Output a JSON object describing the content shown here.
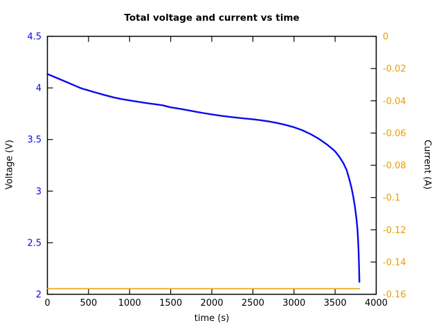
{
  "chart_data": {
    "type": "line",
    "title": "Total voltage and current vs time",
    "xlabel": "time (s)",
    "ylabel_left": "Voltage (V)",
    "ylabel_right": "Current (A)",
    "x_range": [
      0,
      4000
    ],
    "y_left_range": [
      2,
      4.5
    ],
    "y_right_range": [
      -0.16,
      0
    ],
    "x_ticks": [
      0,
      500,
      1000,
      1500,
      2000,
      2500,
      3000,
      3500,
      4000
    ],
    "x_tick_labels": [
      "0",
      "500",
      "1000",
      "1500",
      "2000",
      "2500",
      "3000",
      "3500",
      "4000"
    ],
    "y_left_ticks": [
      2,
      2.5,
      3,
      3.5,
      4,
      4.5
    ],
    "y_left_tick_labels": [
      "2",
      "2.5",
      "3",
      "3.5",
      "4",
      "4.5"
    ],
    "y_right_ticks": [
      0,
      -0.02,
      -0.04,
      -0.06,
      -0.08,
      -0.1,
      -0.12,
      -0.14,
      -0.16
    ],
    "y_right_tick_labels": [
      "0",
      "-0.02",
      "-0.04",
      "-0.06",
      "-0.08",
      "-0.1",
      "-0.12",
      "-0.14",
      "-0.16"
    ],
    "grid": false,
    "legend": null,
    "colors": {
      "voltage": "#0909ee",
      "current": "#e69f00",
      "axis": "#000000"
    },
    "series": [
      {
        "name": "voltage",
        "axis": "left",
        "color": "#0909ee",
        "points": [
          [
            0,
            4.135
          ],
          [
            80,
            4.108
          ],
          [
            160,
            4.081
          ],
          [
            240,
            4.054
          ],
          [
            320,
            4.027
          ],
          [
            400,
            4.0
          ],
          [
            440,
            3.989
          ],
          [
            480,
            3.98
          ],
          [
            540,
            3.966
          ],
          [
            600,
            3.952
          ],
          [
            700,
            3.93
          ],
          [
            800,
            3.909
          ],
          [
            900,
            3.892
          ],
          [
            1000,
            3.879
          ],
          [
            1100,
            3.866
          ],
          [
            1200,
            3.854
          ],
          [
            1300,
            3.843
          ],
          [
            1400,
            3.832
          ],
          [
            1500,
            3.812
          ],
          [
            1600,
            3.799
          ],
          [
            1700,
            3.785
          ],
          [
            1800,
            3.77
          ],
          [
            1900,
            3.756
          ],
          [
            2000,
            3.743
          ],
          [
            2100,
            3.731
          ],
          [
            2200,
            3.721
          ],
          [
            2300,
            3.712
          ],
          [
            2400,
            3.704
          ],
          [
            2500,
            3.696
          ],
          [
            2600,
            3.686
          ],
          [
            2700,
            3.674
          ],
          [
            2800,
            3.659
          ],
          [
            2900,
            3.641
          ],
          [
            3000,
            3.619
          ],
          [
            3100,
            3.59
          ],
          [
            3200,
            3.553
          ],
          [
            3300,
            3.508
          ],
          [
            3400,
            3.452
          ],
          [
            3450,
            3.42
          ],
          [
            3500,
            3.385
          ],
          [
            3550,
            3.335
          ],
          [
            3600,
            3.272
          ],
          [
            3640,
            3.205
          ],
          [
            3676,
            3.106
          ],
          [
            3700,
            3.03
          ],
          [
            3720,
            2.95
          ],
          [
            3740,
            2.855
          ],
          [
            3758,
            2.745
          ],
          [
            3772,
            2.63
          ],
          [
            3781,
            2.505
          ],
          [
            3787,
            2.385
          ],
          [
            3791,
            2.27
          ],
          [
            3794,
            2.175
          ],
          [
            3796,
            2.12
          ]
        ]
      },
      {
        "name": "current",
        "axis": "right",
        "color": "#e69f00",
        "points": [
          [
            0,
            -0.1565
          ],
          [
            3796,
            -0.1565
          ]
        ]
      }
    ]
  }
}
